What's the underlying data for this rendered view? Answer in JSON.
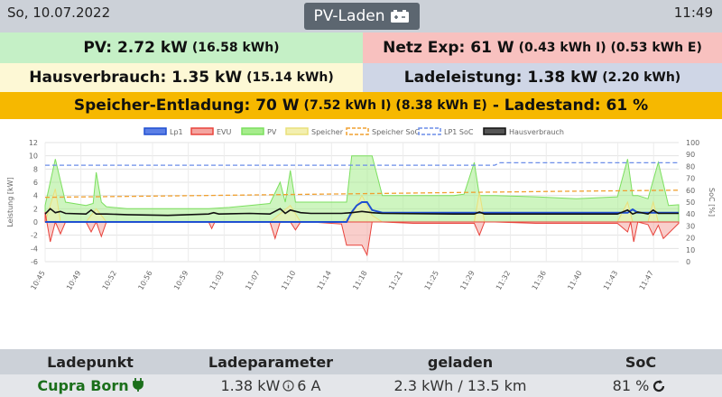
{
  "header": {
    "date": "So, 10.07.2022",
    "mode_label": "PV-Laden",
    "mode_icon": "battery-charging-icon",
    "time": "11:49"
  },
  "summary": {
    "pv_main": "PV: 2.72 kW",
    "pv_sub": "(16.58 kWh)",
    "netz_main": "Netz Exp: 61 W",
    "netz_sub": "(0.43 kWh I) (0.53 kWh E)",
    "haus_main": "Hausverbrauch: 1.35 kW",
    "haus_sub": "(15.14 kWh)",
    "lade_main": "Ladeleistung: 1.38 kW",
    "lade_sub": "(2.20 kWh)",
    "speicher_main": "Speicher-Entladung: 70 W",
    "speicher_sub": "(7.52 kWh I) (8.38 kWh E)",
    "speicher_tail": "- Ladestand: 61 %"
  },
  "colors": {
    "pv_bg": "#c5f0c6",
    "netz_bg": "#f8c1bf",
    "haus_bg": "#fdf8d5",
    "lade_bg": "#cfd6e6",
    "speicher_bg": "#f6b800",
    "lp1": "#1f4fd1",
    "evu": "#e8433c",
    "pv": "#7cdf5f",
    "speicher": "#e9e07a",
    "speicher_soc": "#f0a030",
    "lp1_soc": "#6b8de8",
    "hausverbrauch": "#111111"
  },
  "chart_data": {
    "type": "line",
    "legend": [
      "Lp1",
      "EVU",
      "PV",
      "Speicher",
      "Speicher SoC",
      "LP1 SoC",
      "Hausverbrauch"
    ],
    "legend_position": "top",
    "ylabel": "Leistung [kW]",
    "y2label": "SoC [%]",
    "ylim": [
      -6,
      12
    ],
    "y2lim": [
      0,
      100
    ],
    "yticks": [
      -6,
      -4,
      -2,
      0,
      2,
      4,
      6,
      8,
      10,
      12
    ],
    "y2ticks": [
      0,
      10,
      20,
      30,
      40,
      50,
      60,
      70,
      80,
      90,
      100
    ],
    "xticks": [
      "10:45",
      "10:49",
      "10:52",
      "10:56",
      "10:59",
      "11:03",
      "11:07",
      "11:10",
      "11:14",
      "11:18",
      "11:21",
      "11:25",
      "11:29",
      "11:32",
      "11:36",
      "11:40",
      "11:43",
      "11:47"
    ],
    "x_minutes": [
      0,
      62
    ],
    "grid": true,
    "series": [
      {
        "name": "PV",
        "x": [
          0,
          1,
          2,
          4,
          4.7,
          5,
          5.5,
          6,
          8,
          12,
          16,
          18,
          20,
          22,
          23,
          23.5,
          24,
          24.5,
          25,
          26,
          27,
          28,
          29.5,
          30,
          31,
          32,
          33,
          34,
          35,
          36,
          37,
          40,
          41,
          42,
          42.5,
          43,
          44,
          48,
          52,
          56,
          57,
          57.5,
          58,
          59,
          60,
          61,
          62
        ],
        "values": [
          2.5,
          9.5,
          3,
          2.5,
          2.8,
          7.5,
          3,
          2.3,
          2,
          2,
          2,
          2.2,
          2.5,
          2.8,
          6,
          3,
          7.8,
          3,
          3,
          3,
          3,
          3,
          3,
          10,
          10,
          10,
          4,
          4,
          4,
          4,
          4,
          4,
          4.2,
          9,
          4,
          4,
          4,
          3.8,
          3.5,
          3.8,
          9.5,
          4,
          4,
          3.5,
          9,
          2.5,
          2.6
        ]
      },
      {
        "name": "EVU",
        "x": [
          0,
          0.5,
          1,
          1.5,
          2,
          4,
          4.5,
          5,
          5.5,
          6,
          8,
          12,
          16,
          16.3,
          16.6,
          20,
          22,
          22.5,
          23,
          24,
          24.5,
          25,
          26,
          29,
          29.5,
          30,
          31,
          31.5,
          32,
          33,
          36,
          40,
          42,
          42.5,
          43,
          44,
          48,
          52,
          56,
          57,
          57.3,
          57.6,
          58,
          59,
          59.5,
          60,
          60.5,
          62
        ],
        "values": [
          1.5,
          -3,
          0,
          -1.8,
          0,
          0,
          -1.5,
          0,
          -2.2,
          0,
          0,
          0,
          0,
          -1,
          0,
          0,
          0,
          -2.5,
          0,
          0,
          -1.2,
          0,
          0,
          -0.3,
          -3.5,
          -3.5,
          -3.5,
          -5,
          0,
          0,
          -0.2,
          -0.2,
          -0.2,
          -2,
          0,
          0,
          -0.2,
          -0.2,
          -0.2,
          -1.5,
          0,
          -3,
          0,
          -0.4,
          -2,
          -0.5,
          -2.5,
          -0.2
        ]
      },
      {
        "name": "Lp1",
        "x": [
          0,
          29.5,
          30,
          30.5,
          31,
          31.5,
          32,
          33,
          40,
          57,
          57.5,
          58,
          59,
          62
        ],
        "values": [
          0,
          0,
          1.5,
          2.5,
          3,
          3,
          1.8,
          1.4,
          1.4,
          1.4,
          1.9,
          1.4,
          1.4,
          1.4
        ]
      },
      {
        "name": "Speicher",
        "x": [
          0,
          1,
          1.5,
          2,
          4,
          5,
          6,
          8,
          16,
          22,
          24,
          25,
          29,
          30,
          31,
          32,
          33,
          40,
          42,
          42.5,
          43,
          44,
          56,
          57,
          57.5,
          58,
          59,
          59.5,
          60,
          62
        ],
        "values": [
          0,
          5,
          0,
          0,
          0,
          2,
          0,
          0,
          0,
          0,
          2.5,
          0,
          0,
          1,
          4,
          1,
          0,
          0,
          0,
          4.5,
          0,
          0,
          0,
          3,
          0,
          0,
          0,
          3,
          0,
          0
        ]
      },
      {
        "name": "Hausverbrauch",
        "x": [
          0,
          0.5,
          1,
          1.5,
          2,
          4,
          4.5,
          5,
          6,
          8,
          12,
          16,
          16.5,
          17,
          20,
          22,
          23,
          23.5,
          24,
          25,
          26,
          29,
          30,
          31,
          32,
          33,
          40,
          42,
          42.5,
          43,
          44,
          52,
          56,
          57,
          57.5,
          58,
          59,
          59.5,
          60,
          62
        ],
        "values": [
          1.2,
          2,
          1.4,
          1.6,
          1.3,
          1.2,
          1.8,
          1.2,
          1.2,
          1.1,
          1,
          1.2,
          1.4,
          1.2,
          1.3,
          1.2,
          2,
          1.3,
          1.8,
          1.4,
          1.3,
          1.3,
          1.4,
          1.6,
          1.4,
          1.3,
          1.2,
          1.2,
          1.5,
          1.2,
          1.2,
          1.2,
          1.2,
          1.8,
          1.2,
          1.5,
          1.2,
          1.8,
          1.3,
          1.3
        ]
      },
      {
        "name": "Speicher SoC",
        "x": [
          0,
          10,
          20,
          30,
          40,
          50,
          62
        ],
        "values": [
          54,
          55,
          56,
          57,
          58,
          59,
          60
        ],
        "axis": "y2"
      },
      {
        "name": "LP1 SoC",
        "x": [
          0,
          44,
          44.5,
          62
        ],
        "values": [
          81,
          81,
          83,
          83
        ],
        "axis": "y2"
      }
    ]
  },
  "table": {
    "headers": [
      "Ladepunkt",
      "Ladeparameter",
      "geladen",
      "SoC"
    ],
    "rows": [
      {
        "ladepunkt": "Cupra Born",
        "power": "1.38 kW",
        "phases": "6 A",
        "geladen": "2.3 kWh / 13.5 km",
        "soc": "81 %"
      }
    ]
  }
}
